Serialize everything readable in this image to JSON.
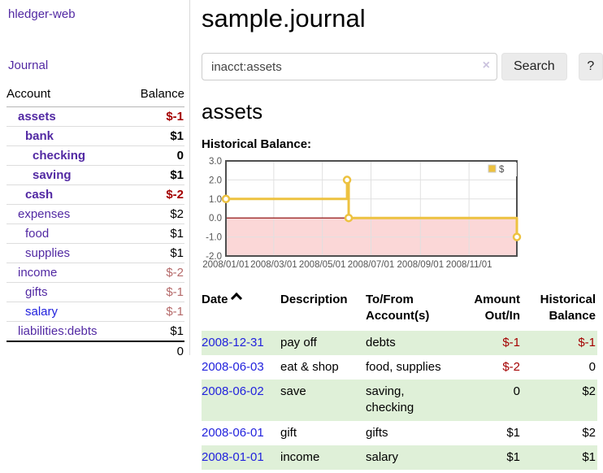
{
  "sidebar": {
    "brand": "hledger-web",
    "nav": {
      "journal": "Journal"
    },
    "accounts_table": {
      "headers": {
        "account": "Account",
        "balance": "Balance"
      },
      "rows": [
        {
          "name": "assets",
          "balance": "$-1",
          "indent": 1,
          "bold": true,
          "link": "purple"
        },
        {
          "name": "bank",
          "balance": "$1",
          "indent": 2,
          "bold": true,
          "link": "purple"
        },
        {
          "name": "checking",
          "balance": "0",
          "indent": 3,
          "bold": true,
          "link": "purple"
        },
        {
          "name": "saving",
          "balance": "$1",
          "indent": 3,
          "bold": true,
          "link": "purple"
        },
        {
          "name": "cash",
          "balance": "$-2",
          "indent": 2,
          "bold": true,
          "link": "purple"
        },
        {
          "name": "expenses",
          "balance": "$2",
          "indent": 1,
          "bold": false,
          "link": "purple"
        },
        {
          "name": "food",
          "balance": "$1",
          "indent": 2,
          "bold": false,
          "link": "purple"
        },
        {
          "name": "supplies",
          "balance": "$1",
          "indent": 2,
          "bold": false,
          "link": "purple"
        },
        {
          "name": "income",
          "balance": "$-2",
          "indent": 1,
          "bold": false,
          "link": "purple"
        },
        {
          "name": "gifts",
          "balance": "$-1",
          "indent": 2,
          "bold": false,
          "link": "purple"
        },
        {
          "name": "salary",
          "balance": "$-1",
          "indent": 2,
          "bold": false,
          "link": "blue"
        },
        {
          "name": "liabilities:debts",
          "balance": "$1",
          "indent": 1,
          "bold": false,
          "link": "purple"
        }
      ],
      "total": "0"
    }
  },
  "main": {
    "title": "sample.journal",
    "search": {
      "value": "inacct:assets",
      "clear_icon": "×",
      "search_button": "Search",
      "help_button": "?"
    },
    "account_heading": "assets",
    "section_label": "Historical Balance:"
  },
  "chart_data": {
    "type": "line",
    "style": "step",
    "title": "Historical Balance:",
    "series": [
      {
        "name": "$",
        "color": "#edc240",
        "points": [
          [
            "2008/01/01",
            1
          ],
          [
            "2008/06/01",
            2
          ],
          [
            "2008/06/03",
            0
          ],
          [
            "2008/12/31",
            -1
          ]
        ]
      }
    ],
    "x_ticks": [
      "2008/01/01",
      "2008/03/01",
      "2008/05/01",
      "2008/07/01",
      "2008/09/01",
      "2008/11/01"
    ],
    "y_ticks": [
      "3.0",
      "2.0",
      "1.0",
      "0.0",
      "-1.0",
      "-2.0"
    ],
    "xlim": [
      "2008/01/01",
      "2008/12/31"
    ],
    "ylim": [
      -2,
      3
    ],
    "grid": true,
    "legend": {
      "label": "$",
      "position": "top-right"
    },
    "negative_fill": "#fbd7d7",
    "zero_line_color": "#8b0000"
  },
  "transactions": {
    "headers": [
      {
        "label": "Date",
        "sort_icon": "caret-up-icon"
      },
      {
        "label": "Description"
      },
      {
        "label": "To/From\nAccount(s)"
      },
      {
        "label": "Amount\nOut/In",
        "align": "right"
      },
      {
        "label": "Historical\nBalance",
        "align": "right"
      }
    ],
    "rows": [
      {
        "date": "2008-12-31",
        "description": "pay off",
        "accounts": "debts",
        "amount": "$-1",
        "balance": "$-1"
      },
      {
        "date": "2008-06-03",
        "description": "eat & shop",
        "accounts": "food, supplies",
        "amount": "$-2",
        "balance": "0"
      },
      {
        "date": "2008-06-02",
        "description": "save",
        "accounts": "saving,\nchecking",
        "amount": "0",
        "balance": "$2"
      },
      {
        "date": "2008-06-01",
        "description": "gift",
        "accounts": "gifts",
        "amount": "$1",
        "balance": "$2"
      },
      {
        "date": "2008-01-01",
        "description": "income",
        "accounts": "salary",
        "amount": "$1",
        "balance": "$1"
      }
    ]
  },
  "colors": {
    "link_purple": "#5229a3",
    "link_blue": "#2222dd",
    "negative_red": "#a40000",
    "negative_dim_red": "#b56a6a",
    "row_stripe_green": "#dff0d8",
    "series_gold": "#edc240"
  }
}
